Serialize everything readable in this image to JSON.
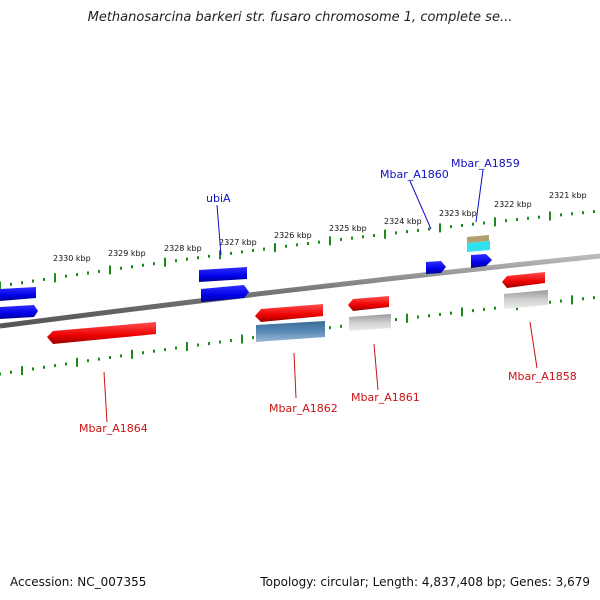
{
  "title": "Methanosarcina barkeri str. fusaro chromosome 1, complete se...",
  "accession": "Accession: NC_007355",
  "summary": "Topology: circular; Length: 4,837,408 bp; Genes: 3,679",
  "ticks": [
    "2330 kbp",
    "2329 kbp",
    "2328 kbp",
    "2327 kbp",
    "2326 kbp",
    "2325 kbp",
    "2324 kbp",
    "2323 kbp",
    "2322 kbp",
    "2321 kbp"
  ],
  "genes": {
    "ubiA": "ubiA",
    "a1860": "Mbar_A1860",
    "a1859": "Mbar_A1859",
    "a1864": "Mbar_A1864",
    "a1862": "Mbar_A1862",
    "a1861": "Mbar_A1861",
    "a1858": "Mbar_A1858"
  },
  "colors": {
    "forward": "#0a0af0",
    "reverse": "#ee1111",
    "forward_label": "#1010c0",
    "reverse_label": "#cc1111",
    "tick": "#1a8a1a",
    "backbone": "#808080"
  }
}
